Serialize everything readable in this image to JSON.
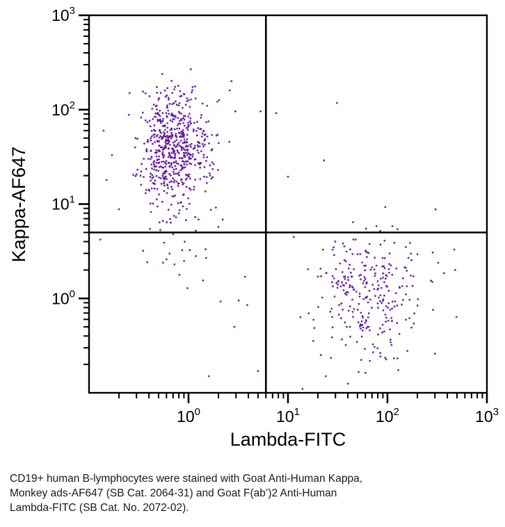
{
  "chart_data": {
    "type": "scatter",
    "title": "",
    "xlabel": "Lambda-FITC",
    "ylabel": "Kappa-AF647",
    "x_scale": "log",
    "y_scale": "log",
    "xlim": [
      0.1,
      1000
    ],
    "ylim": [
      0.1,
      1000
    ],
    "tick_base": "10",
    "x_tick_exponents": [
      0,
      1,
      2,
      3
    ],
    "y_tick_exponents": [
      0,
      1,
      2,
      3
    ],
    "minor_tick_decades": [
      -1,
      0,
      1,
      2
    ],
    "grid": "off",
    "legend": "none",
    "gates": {
      "x": 6,
      "y": 5
    },
    "style": {
      "point_color": "#5E12A0",
      "point_radius": 1.4,
      "axis_color": "#000000",
      "gate_color": "#000000"
    },
    "populations": [
      {
        "name": "kappa-positive-b-cells-main",
        "n": 560,
        "log_center_x": -0.17,
        "log_center_y": 1.62,
        "log_sd_x": 0.17,
        "log_sd_y": 0.28,
        "seed": 42,
        "approx_center": [
          0.68,
          42
        ]
      },
      {
        "name": "kappa-positive-low-tail",
        "n": 45,
        "log_center_x": -0.14,
        "log_center_y": 0.78,
        "log_sd_x": 0.16,
        "log_sd_y": 0.33,
        "seed": 7,
        "approx_center": [
          0.72,
          6
        ]
      },
      {
        "name": "kappa-positive-right-fringe",
        "n": 28,
        "log_center_x": 0.22,
        "log_center_y": 1.5,
        "log_sd_x": 0.14,
        "log_sd_y": 0.34,
        "seed": 99,
        "approx_center": [
          1.7,
          32
        ]
      },
      {
        "name": "lambda-positive-b-cells-main",
        "n": 270,
        "log_center_x": 1.83,
        "log_center_y": 0.07,
        "log_sd_x": 0.27,
        "log_sd_y": 0.3,
        "seed": 1337,
        "approx_center": [
          68,
          1.2
        ]
      },
      {
        "name": "lambda-positive-low-tail",
        "n": 18,
        "log_center_x": 1.75,
        "log_center_y": -0.55,
        "log_sd_x": 0.25,
        "log_sd_y": 0.25,
        "seed": 555,
        "approx_center": [
          56,
          0.3
        ]
      }
    ],
    "outlier_points": [
      [
        31,
        118
      ],
      [
        7.6,
        92
      ],
      [
        23,
        29
      ],
      [
        10,
        19.5
      ],
      [
        95,
        9.3
      ],
      [
        61,
        5.5
      ],
      [
        5.3,
        96
      ],
      [
        2.6,
        160
      ],
      [
        0.14,
        60
      ],
      [
        0.17,
        33
      ],
      [
        0.15,
        18
      ],
      [
        0.2,
        8.8
      ],
      [
        0.13,
        4.2
      ],
      [
        0.35,
        3.2
      ],
      [
        0.6,
        2.6
      ],
      [
        0.81,
        1.78
      ],
      [
        1.4,
        1.55
      ],
      [
        2.1,
        0.93
      ],
      [
        3.2,
        0.95
      ],
      [
        3.9,
        0.85
      ],
      [
        3.7,
        1.7
      ],
      [
        1.6,
        0.15
      ],
      [
        5,
        0.17
      ],
      [
        2.9,
        0.5
      ],
      [
        14,
        0.11
      ],
      [
        40,
        0.125
      ],
      [
        470,
        3.3
      ],
      [
        480,
        2.0
      ],
      [
        300,
        0.26
      ],
      [
        24,
        0.15
      ]
    ]
  },
  "caption": {
    "lines": [
      "CD19+ human B-lymphocytes were stained with Goat Anti-Human Kappa,",
      "Monkey ads-AF647 (SB Cat. 2064-31) and Goat F(ab’)2 Anti-Human",
      "Lambda-FITC (SB Cat. No. 2072-02)."
    ]
  }
}
